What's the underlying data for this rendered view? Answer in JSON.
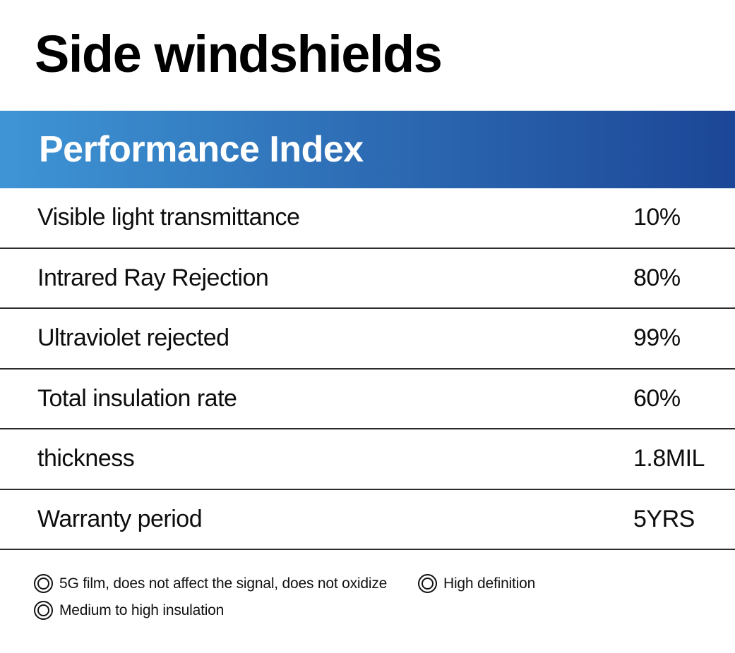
{
  "page": {
    "title": "Side windshields"
  },
  "banner": {
    "title": "Performance Index",
    "gradient_left_color": "#3e95d5",
    "gradient_right_color": "#1c4697",
    "text_color": "#ffffff"
  },
  "spec_table": {
    "rows": [
      {
        "label": "Visible light transmittance",
        "value": "10%"
      },
      {
        "label": "Intrared Ray Rejection",
        "value": "80%"
      },
      {
        "label": "Ultraviolet rejected",
        "value": "99%"
      },
      {
        "label": "Total insulation rate",
        "value": "60%"
      },
      {
        "label": "thickness",
        "value": "1.8MIL"
      },
      {
        "label": "Warranty period",
        "value": "5YRS"
      }
    ]
  },
  "features": {
    "icon": "double-circle-icon",
    "items": [
      "5G film, does not affect the signal, does not oxidize",
      "High definition",
      "Medium to high insulation"
    ]
  }
}
